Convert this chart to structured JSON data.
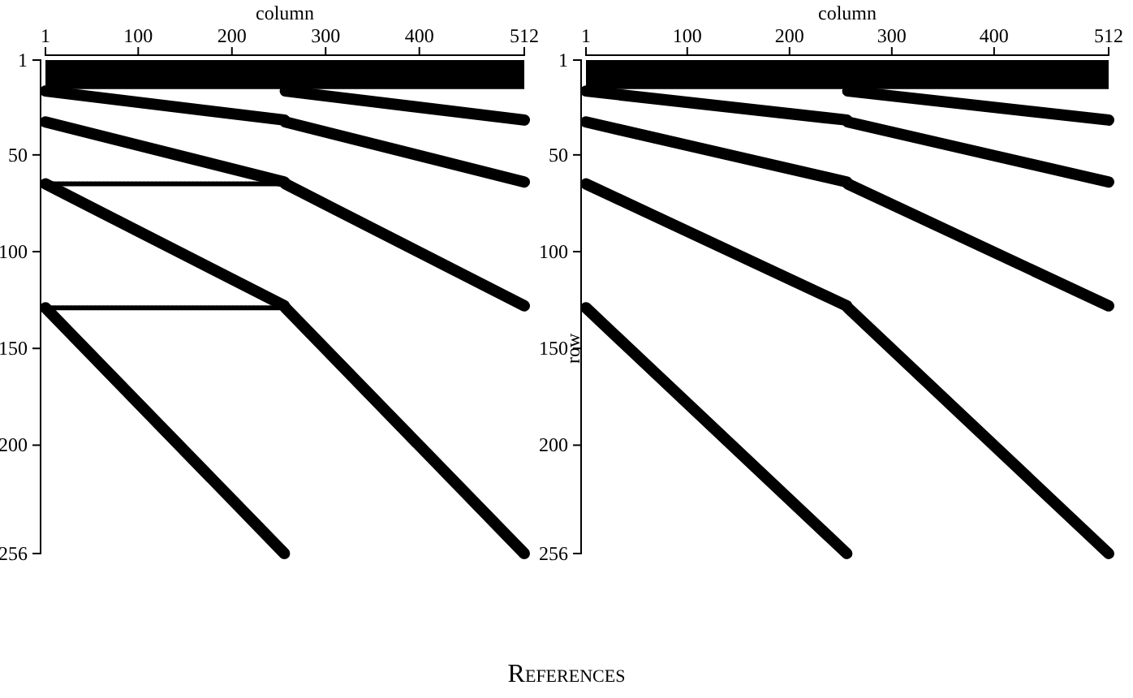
{
  "chart_data": [
    {
      "type": "line",
      "xlabel": "column",
      "xlim": [
        1,
        512
      ],
      "xticks": [
        1,
        100,
        200,
        300,
        400,
        512
      ],
      "ylim": [
        256,
        1
      ],
      "yticks": [
        1,
        50,
        100,
        150,
        200,
        256
      ],
      "annotations": [
        "References"
      ],
      "bands": [
        {
          "axis": "y",
          "from": 1,
          "to": 16,
          "color": "#000000"
        }
      ],
      "series": [
        {
          "color": "#000000",
          "line_style": "solid",
          "x": [
            1,
            256,
            null,
            257,
            512
          ],
          "values": [
            17,
            32,
            null,
            17,
            32
          ]
        },
        {
          "color": "#000000",
          "line_style": "solid",
          "x": [
            1,
            256,
            null,
            257,
            512
          ],
          "values": [
            33,
            64,
            null,
            33,
            64
          ]
        },
        {
          "color": "#000000",
          "line_style": "solid",
          "x": [
            1,
            256,
            null,
            257,
            512
          ],
          "values": [
            65,
            128,
            null,
            65,
            128
          ]
        },
        {
          "color": "#000000",
          "line_style": "solid",
          "x": [
            1,
            256,
            null,
            257,
            512
          ],
          "values": [
            129,
            256,
            null,
            129,
            256
          ]
        },
        {
          "color": "#000000",
          "line_style": "dotted",
          "x": [
            1,
            256
          ],
          "values": [
            65,
            65
          ]
        },
        {
          "color": "#000000",
          "line_style": "dotted",
          "x": [
            1,
            256
          ],
          "values": [
            129,
            129
          ]
        }
      ]
    },
    {
      "type": "line",
      "xlabel": "column",
      "ylabel": "row",
      "xlim": [
        1,
        512
      ],
      "xticks": [
        1,
        100,
        200,
        300,
        400,
        512
      ],
      "ylim": [
        256,
        1
      ],
      "yticks": [
        1,
        50,
        100,
        150,
        200,
        256
      ],
      "bands": [
        {
          "axis": "y",
          "from": 1,
          "to": 16,
          "color": "#000000"
        }
      ],
      "series": [
        {
          "color": "#000000",
          "line_style": "solid",
          "x": [
            1,
            256,
            null,
            257,
            512
          ],
          "values": [
            17,
            32,
            null,
            17,
            32
          ]
        },
        {
          "color": "#000000",
          "line_style": "solid",
          "x": [
            1,
            256,
            null,
            257,
            512
          ],
          "values": [
            33,
            64,
            null,
            33,
            64
          ]
        },
        {
          "color": "#000000",
          "line_style": "solid",
          "x": [
            1,
            256,
            null,
            257,
            512
          ],
          "values": [
            65,
            128,
            null,
            65,
            128
          ]
        },
        {
          "color": "#000000",
          "line_style": "solid",
          "x": [
            1,
            256,
            null,
            257,
            512
          ],
          "values": [
            129,
            256,
            null,
            129,
            256
          ]
        }
      ]
    }
  ]
}
